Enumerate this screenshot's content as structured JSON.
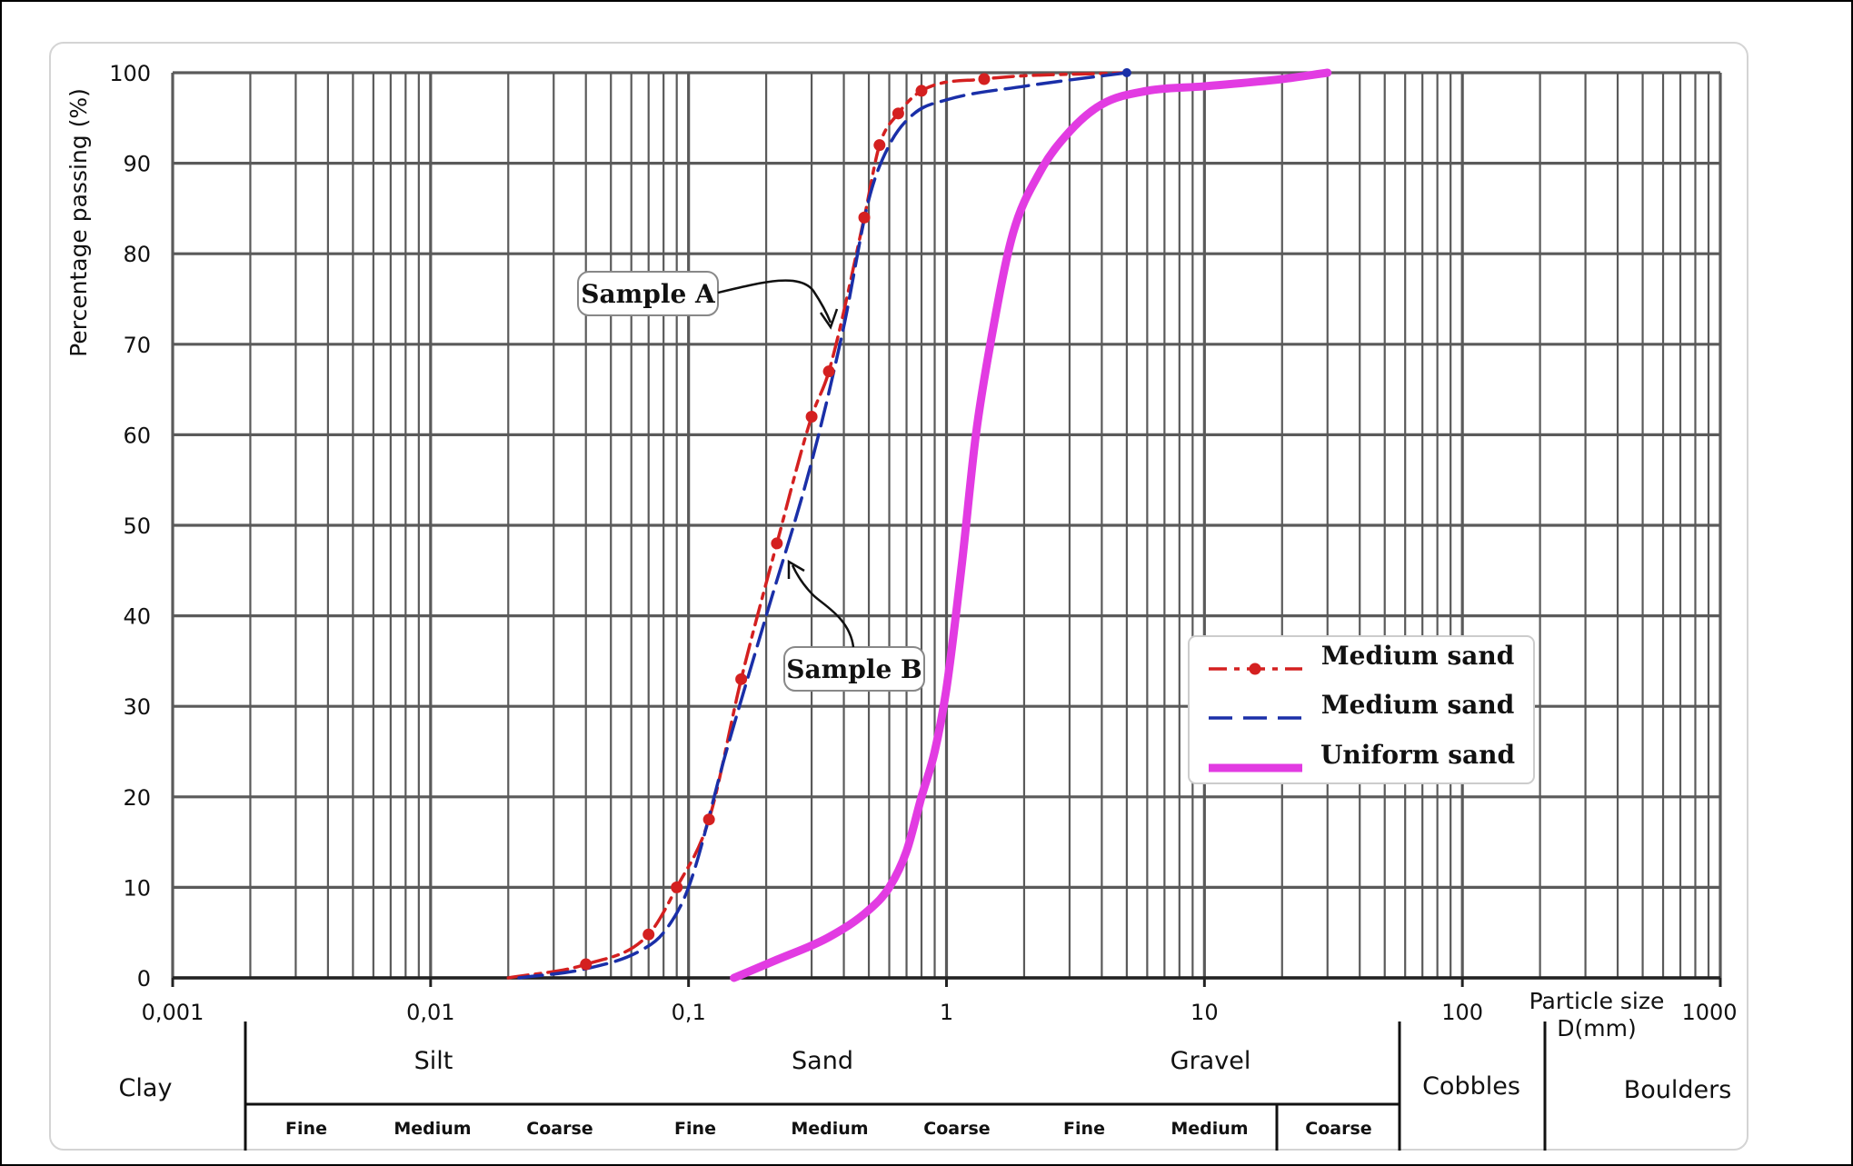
{
  "chart_data": {
    "type": "line",
    "xscale": "log",
    "xlim": [
      0.001,
      1000
    ],
    "ylim": [
      0,
      100
    ],
    "ylabel": "Percentage passing (%)",
    "xlabel": "Particle size D(mm)",
    "grid": true,
    "legend_position": "lower-right",
    "x_tick_labels": [
      "0,001",
      "0,01",
      "0,1",
      "1",
      "10",
      "100",
      "1000"
    ],
    "y_tick_labels": [
      "0",
      "10",
      "20",
      "30",
      "40",
      "50",
      "60",
      "70",
      "80",
      "90",
      "100"
    ],
    "series": [
      {
        "name": "Medium sand",
        "color": "#d42020",
        "style": "dash-dot with dots",
        "x": [
          0.02,
          0.04,
          0.07,
          0.09,
          0.12,
          0.16,
          0.22,
          0.3,
          0.35,
          0.48,
          0.55,
          0.65,
          0.8,
          1.4,
          5
        ],
        "y": [
          0,
          1.5,
          4.8,
          10,
          17.5,
          33,
          48,
          62,
          67,
          84,
          92,
          95.5,
          98,
          99.3,
          100
        ]
      },
      {
        "name": "Medium sand",
        "color": "#1a2fa8",
        "style": "long dash",
        "x": [
          0.022,
          0.04,
          0.065,
          0.08,
          0.1,
          0.14,
          0.2,
          0.3,
          0.4,
          0.5,
          0.6,
          0.75,
          1,
          2,
          5
        ],
        "y": [
          0,
          1,
          3,
          5,
          10,
          25,
          40,
          57,
          72,
          86,
          92,
          95.5,
          97,
          98.5,
          100
        ]
      },
      {
        "name": "Uniform sand",
        "color": "#e23be2",
        "style": "thick solid",
        "x": [
          0.15,
          0.22,
          0.35,
          0.5,
          0.6,
          0.7,
          0.8,
          0.9,
          1.0,
          1.15,
          1.3,
          1.5,
          1.8,
          2.3,
          3,
          4,
          6,
          10,
          20,
          30
        ],
        "y": [
          0,
          2,
          4.5,
          7.5,
          10,
          14,
          20,
          25,
          32,
          46,
          60,
          71,
          82,
          89,
          93.5,
          96.5,
          98,
          98.5,
          99.3,
          100
        ]
      }
    ],
    "annotations": [
      "Sample A",
      "Sample B"
    ],
    "classification": {
      "top_labels": [
        "Clay",
        "Silt",
        "Sand",
        "Gravel",
        "Cobbles",
        "Boulders"
      ],
      "sub_labels": [
        "Fine",
        "Medium",
        "Coarse",
        "Fine",
        "Medium",
        "Coarse",
        "Fine",
        "Medium",
        "Coarse"
      ]
    }
  }
}
